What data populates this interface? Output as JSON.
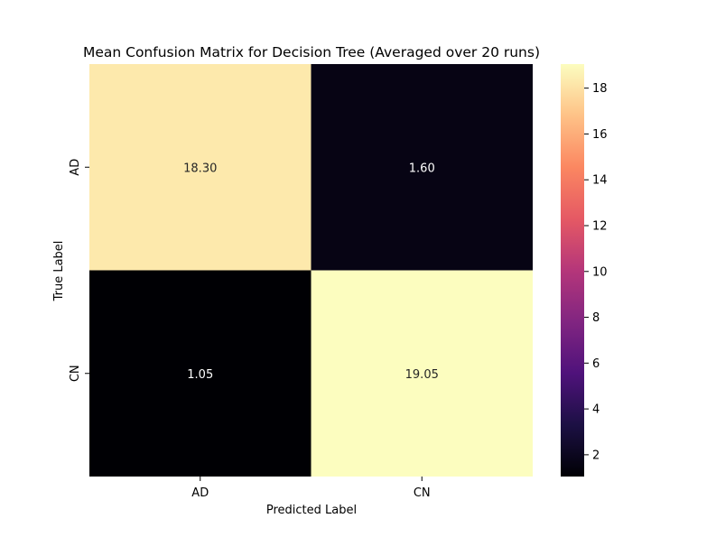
{
  "chart_data": {
    "type": "heatmap",
    "title": "Mean Confusion Matrix for Decision Tree (Averaged over 20 runs)",
    "xlabel": "Predicted Label",
    "ylabel": "True Label",
    "x_categories": [
      "AD",
      "CN"
    ],
    "y_categories": [
      "AD",
      "CN"
    ],
    "values": [
      [
        18.3,
        1.6
      ],
      [
        1.05,
        19.05
      ]
    ],
    "cell_labels": [
      [
        "18.30",
        "1.60"
      ],
      [
        "1.05",
        "19.05"
      ]
    ],
    "colormap": "magma",
    "colorbar": {
      "range": [
        1.05,
        19.05
      ],
      "ticks": [
        2,
        4,
        6,
        8,
        10,
        12,
        14,
        16,
        18
      ],
      "tick_labels": [
        "2",
        "4",
        "6",
        "8",
        "10",
        "12",
        "14",
        "16",
        "18"
      ]
    },
    "grid": false
  }
}
